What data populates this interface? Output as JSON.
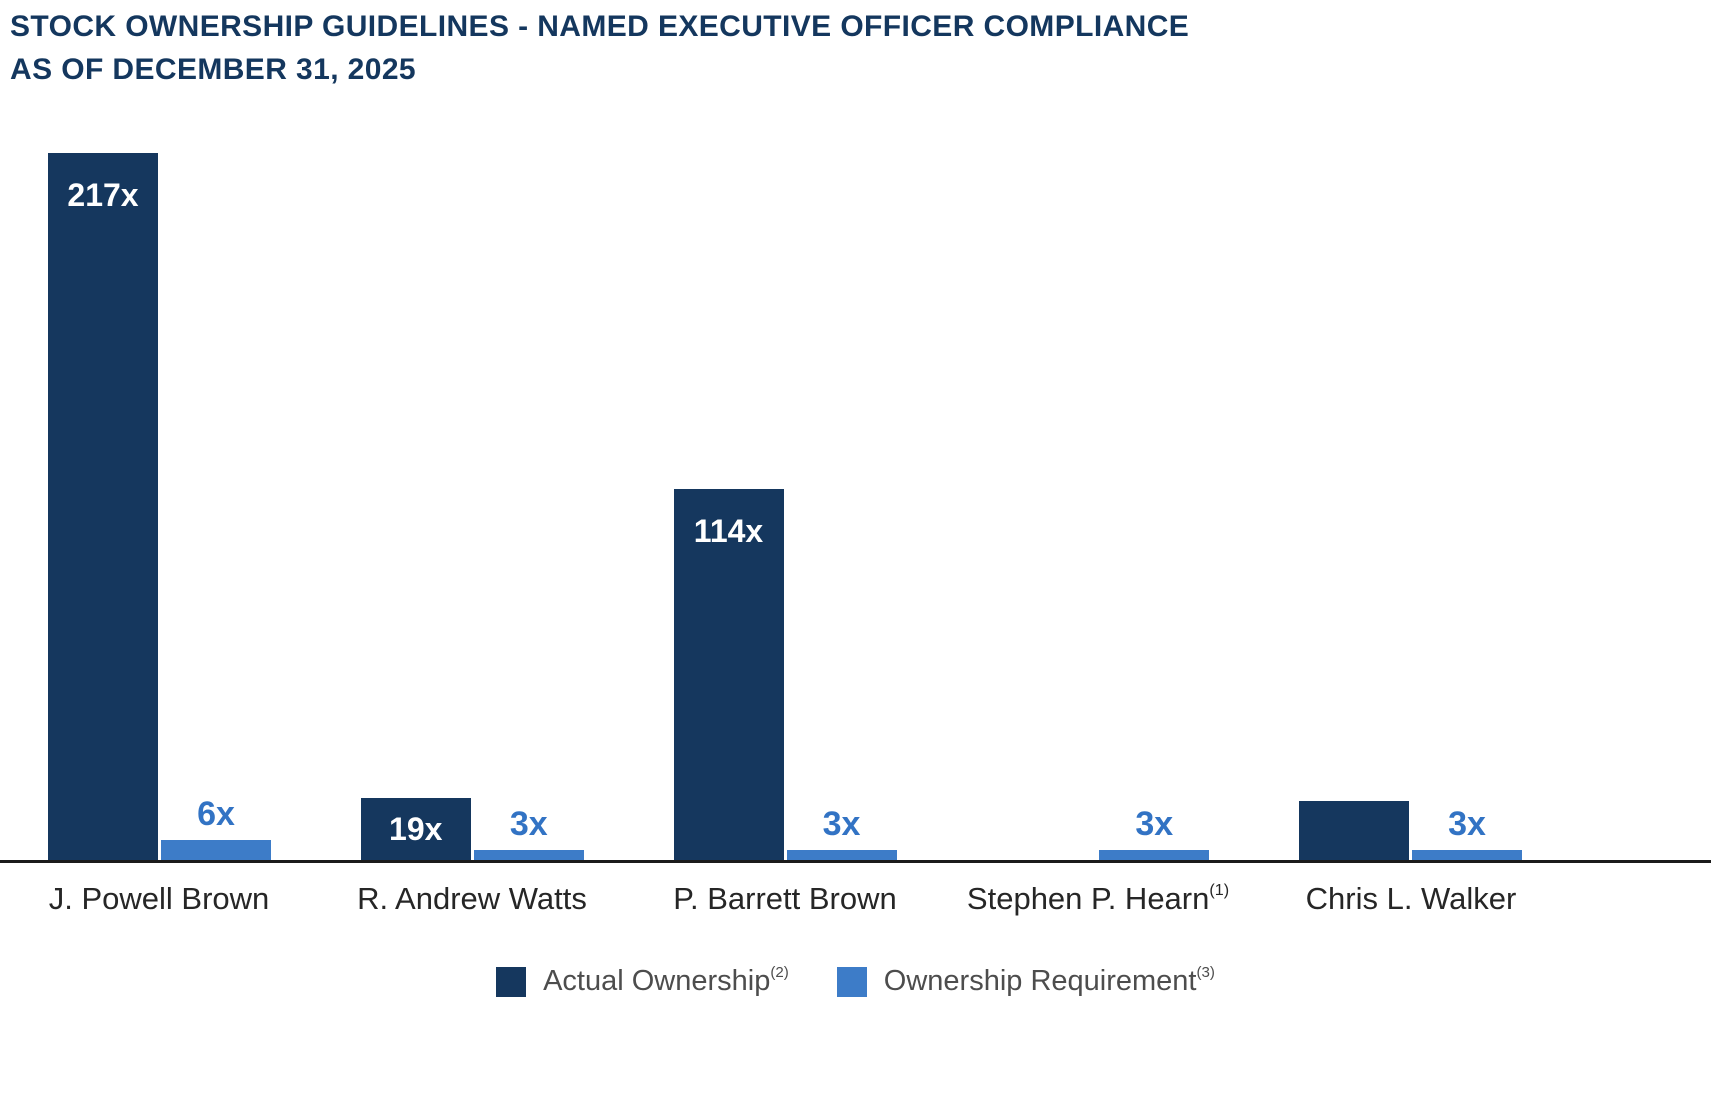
{
  "title": {
    "line1": "STOCK OWNERSHIP GUIDELINES - NAMED EXECUTIVE OFFICER COMPLIANCE",
    "line2": "AS OF DECEMBER 31, 2025"
  },
  "colors": {
    "navy": "#15375E",
    "blue": "#3D7CC8",
    "blue_label": "#3273C4",
    "axis": "#1B1B1B",
    "title_text": "#14375E",
    "category_text": "#262626",
    "legend_text": "#4D4D4D"
  },
  "chart_data": {
    "type": "bar",
    "title": "STOCK OWNERSHIP GUIDELINES - NAMED EXECUTIVE OFFICER COMPLIANCE AS OF DECEMBER 31, 2025",
    "categories": [
      {
        "name": "J. Powell Brown",
        "sup": ""
      },
      {
        "name": "R. Andrew Watts",
        "sup": ""
      },
      {
        "name": "P. Barrett Brown",
        "sup": ""
      },
      {
        "name": "Stephen P. Hearn",
        "sup": "(1)"
      },
      {
        "name": "Chris L. Walker",
        "sup": ""
      }
    ],
    "unit": "x",
    "series": [
      {
        "name": "Actual Ownership",
        "sup": "(2)",
        "color": "#15375E",
        "values": [
          217,
          19,
          114,
          null,
          18
        ],
        "labels": [
          "217x",
          "19x",
          "114x",
          "",
          ""
        ]
      },
      {
        "name": "Ownership Requirement",
        "sup": "(3)",
        "color": "#3D7CC8",
        "values": [
          6,
          3,
          3,
          3,
          3
        ],
        "labels": [
          "6x",
          "3x",
          "3x",
          "3x",
          "3x"
        ]
      }
    ],
    "ylim": [
      0,
      217
    ],
    "grid": false,
    "legend_position": "bottom"
  }
}
